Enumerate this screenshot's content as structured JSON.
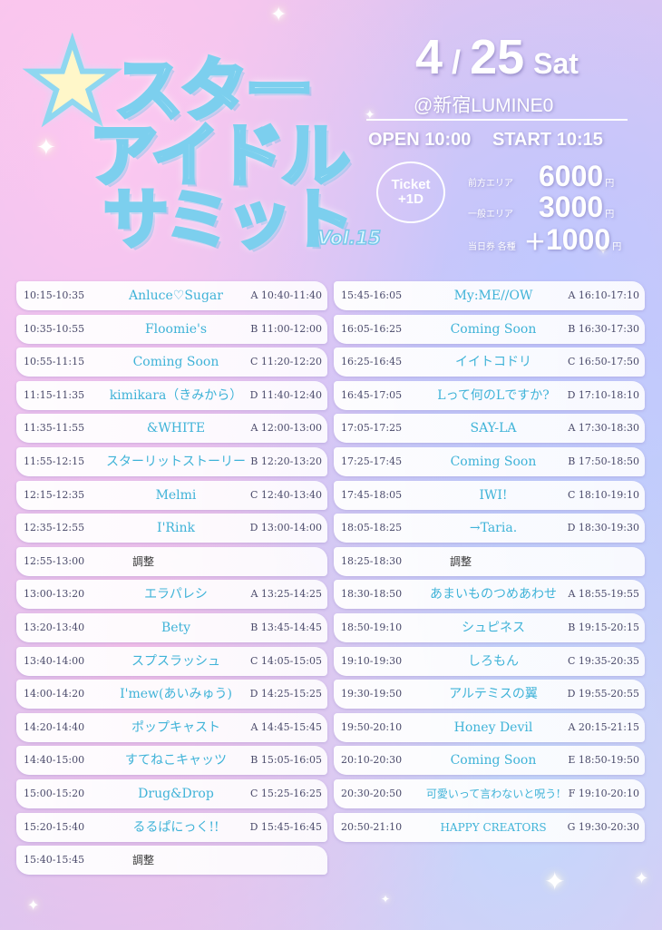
{
  "logo": {
    "line1": "スター",
    "line2": "アイドル",
    "line3": "サミット",
    "vol": "Vol.15"
  },
  "event": {
    "month": "4",
    "day": "25",
    "weekday": "Sat",
    "venue": "@新宿LUMINE0",
    "open_label": "OPEN",
    "open_time": "10:00",
    "start_label": "START",
    "start_time": "10:15",
    "ticket_line1": "Ticket",
    "ticket_line2": "+1D"
  },
  "prices": [
    {
      "label": "前方エリア",
      "plus": "",
      "amount": "6000",
      "unit": "円"
    },
    {
      "label": "一般エリア",
      "plus": "",
      "amount": "3000",
      "unit": "円"
    },
    {
      "label": "当日券 各種",
      "plus": "＋",
      "amount": "1000",
      "unit": "円"
    }
  ],
  "left_column": [
    {
      "time": "10:15-10:35",
      "name": "Anluce♡Sugar",
      "goods": "A 10:40-11:40"
    },
    {
      "time": "10:35-10:55",
      "name": "Floomie's",
      "goods": "B 11:00-12:00"
    },
    {
      "time": "10:55-11:15",
      "name": "Coming Soon",
      "goods": "C 11:20-12:20"
    },
    {
      "time": "11:15-11:35",
      "name": "kimikara（きみから）",
      "goods": "D 11:40-12:40"
    },
    {
      "time": "11:35-11:55",
      "name": "&WHITE",
      "goods": "A 12:00-13:00"
    },
    {
      "time": "11:55-12:15",
      "name": "スターリットストーリー",
      "goods": "B 12:20-13:20"
    },
    {
      "time": "12:15-12:35",
      "name": "Melmi",
      "goods": "C 12:40-13:40"
    },
    {
      "time": "12:35-12:55",
      "name": "I'Rink",
      "goods": "D 13:00-14:00"
    },
    {
      "time": "12:55-13:00",
      "name": "調整",
      "goods": ""
    },
    {
      "time": "13:00-13:20",
      "name": "エラパレシ",
      "goods": "A 13:25-14:25"
    },
    {
      "time": "13:20-13:40",
      "name": "Bety",
      "goods": "B 13:45-14:45"
    },
    {
      "time": "13:40-14:00",
      "name": "スプスラッシュ",
      "goods": "C 14:05-15:05"
    },
    {
      "time": "14:00-14:20",
      "name": "I'mew(あいみゅう)",
      "goods": "D 14:25-15:25"
    },
    {
      "time": "14:20-14:40",
      "name": "ポップキャスト",
      "goods": "A 14:45-15:45"
    },
    {
      "time": "14:40-15:00",
      "name": "すてねこキャッツ",
      "goods": "B 15:05-16:05"
    },
    {
      "time": "15:00-15:20",
      "name": "Drug&Drop",
      "goods": "C 15:25-16:25"
    },
    {
      "time": "15:20-15:40",
      "name": "るるぱにっく!!",
      "goods": "D 15:45-16:45"
    },
    {
      "time": "15:40-15:45",
      "name": "調整",
      "goods": ""
    }
  ],
  "right_column": [
    {
      "time": "15:45-16:05",
      "name": "My:ME//OW",
      "goods": "A 16:10-17:10"
    },
    {
      "time": "16:05-16:25",
      "name": "Coming Soon",
      "goods": "B 16:30-17:30"
    },
    {
      "time": "16:25-16:45",
      "name": "イイトコドリ",
      "goods": "C 16:50-17:50"
    },
    {
      "time": "16:45-17:05",
      "name": "Lって何のLですか?",
      "goods": "D 17:10-18:10"
    },
    {
      "time": "17:05-17:25",
      "name": "SAY-LA",
      "goods": "A 17:30-18:30"
    },
    {
      "time": "17:25-17:45",
      "name": "Coming Soon",
      "goods": "B 17:50-18:50"
    },
    {
      "time": "17:45-18:05",
      "name": "IWI!",
      "goods": "C 18:10-19:10"
    },
    {
      "time": "18:05-18:25",
      "name": "→Taria.",
      "goods": "D 18:30-19:30"
    },
    {
      "time": "18:25-18:30",
      "name": "調整",
      "goods": ""
    },
    {
      "time": "18:30-18:50",
      "name": "あまいものつめあわせ",
      "goods": "A 18:55-19:55"
    },
    {
      "time": "18:50-19:10",
      "name": "シュピネス",
      "goods": "B 19:15-20:15"
    },
    {
      "time": "19:10-19:30",
      "name": "しろもん",
      "goods": "C 19:35-20:35"
    },
    {
      "time": "19:30-19:50",
      "name": "アルテミスの翼",
      "goods": "D 19:55-20:55"
    },
    {
      "time": "19:50-20:10",
      "name": "Honey Devil",
      "goods": "A 20:15-21:15"
    },
    {
      "time": "20:10-20:30",
      "name": "Coming Soon",
      "goods": "E 18:50-19:50"
    },
    {
      "time": "20:30-20:50",
      "name": "可愛いって言わないと呪う!",
      "goods": "F 19:10-20:10"
    },
    {
      "time": "20:50-21:10",
      "name": "HAPPY CREATORS",
      "goods": "G 19:30-20:30"
    }
  ]
}
